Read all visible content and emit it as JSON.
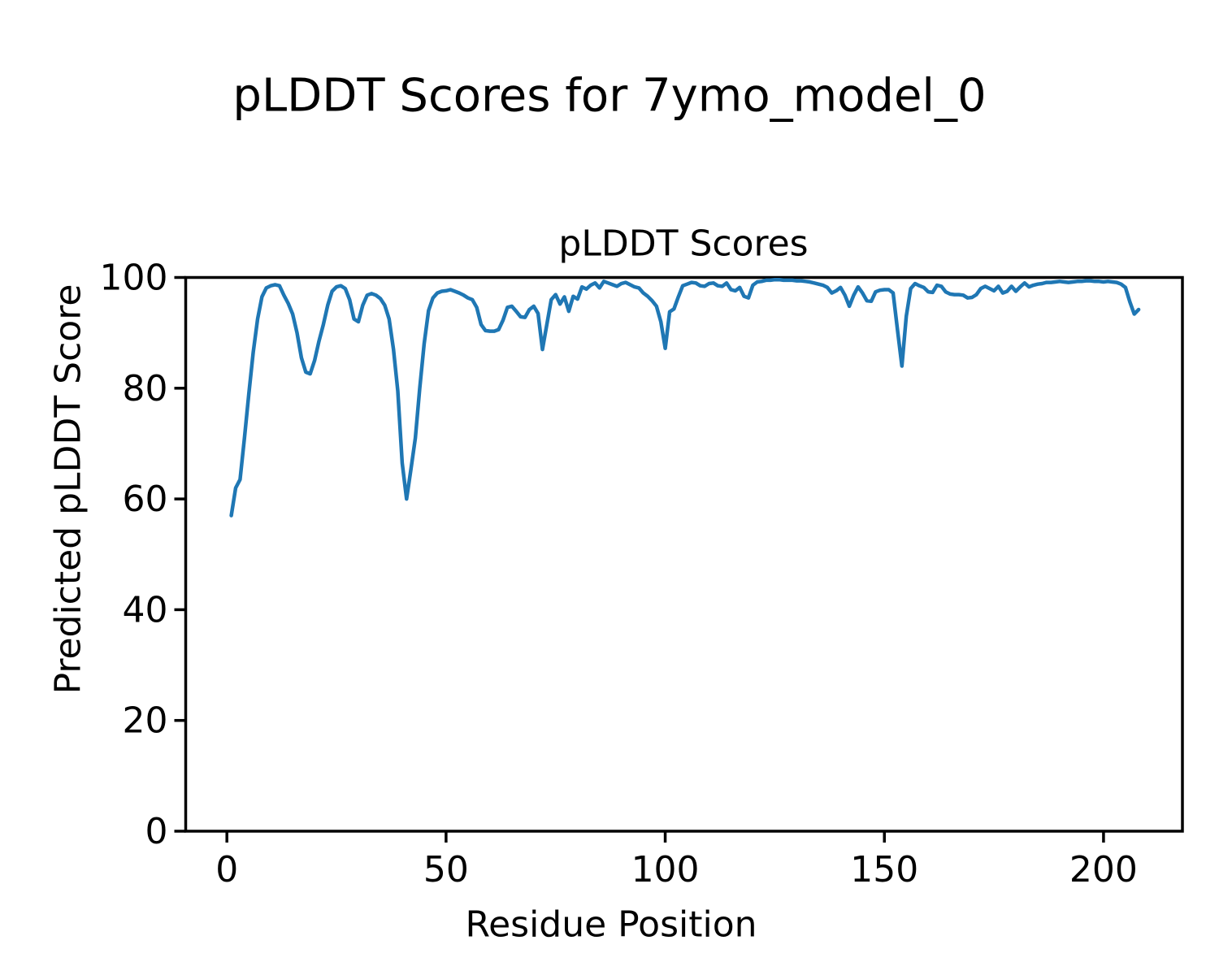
{
  "figure": {
    "suptitle": "pLDDT Scores for 7ymo_model_0",
    "axes_title": "pLDDT Scores",
    "xlabel": "Residue Position",
    "ylabel": "Predicted pLDDT Score",
    "background_color": "#ffffff",
    "text_color": "#000000"
  },
  "chart_data": {
    "type": "line",
    "title": "pLDDT Scores",
    "suptitle": "pLDDT Scores for 7ymo_model_0",
    "xlabel": "Residue Position",
    "ylabel": "Predicted pLDDT Score",
    "grid": false,
    "legend": null,
    "line_color": "#1f77b4",
    "line_width": 4.5,
    "xlim": [
      -9.4,
      218
    ],
    "ylim": [
      0,
      100
    ],
    "xticks": [
      0,
      50,
      100,
      150,
      200
    ],
    "yticks": [
      0,
      20,
      40,
      60,
      80,
      100
    ],
    "x_start": 1,
    "x_step": 1,
    "series": [
      {
        "name": "pLDDT",
        "values": [
          57,
          62,
          63.5,
          71,
          79,
          86.5,
          92.5,
          96.5,
          98.1,
          98.5,
          98.7,
          98.5,
          96.8,
          95.3,
          93.4,
          90,
          85.5,
          82.9,
          82.6,
          85,
          88.5,
          91.5,
          95,
          97.5,
          98.3,
          98.5,
          98,
          96,
          92.5,
          92,
          95,
          96.8,
          97.1,
          96.8,
          96.2,
          95,
          92.5,
          87,
          79.5,
          66.5,
          60,
          65.4,
          71,
          80,
          88,
          94,
          96.3,
          97.2,
          97.5,
          97.6,
          97.8,
          97.5,
          97.2,
          96.8,
          96.3,
          96,
          94.6,
          91.5,
          90.4,
          90.3,
          90.3,
          90.6,
          92.3,
          94.6,
          94.8,
          93.9,
          92.9,
          92.8,
          94.2,
          94.8,
          93.5,
          87,
          91.5,
          96,
          96.9,
          95.2,
          96.5,
          93.9,
          96.6,
          96.1,
          98.3,
          97.9,
          98.6,
          99,
          98.1,
          99.3,
          99,
          98.7,
          98.4,
          98.9,
          99.1,
          98.7,
          98.3,
          98.1,
          97.2,
          96.6,
          95.8,
          94.8,
          92,
          87.2,
          93.8,
          94.3,
          96.5,
          98.5,
          98.8,
          99.1,
          99,
          98.5,
          98.4,
          98.9,
          99,
          98.5,
          98.4,
          99,
          97.8,
          97.6,
          98.2,
          96.6,
          96.3,
          98.6,
          99.2,
          99.3,
          99.5,
          99.5,
          99.6,
          99.6,
          99.5,
          99.5,
          99.5,
          99.4,
          99.4,
          99.3,
          99.2,
          99,
          98.8,
          98.6,
          98.2,
          97.2,
          97.6,
          98.2,
          96.8,
          94.8,
          96.8,
          98.3,
          97.2,
          95.8,
          95.7,
          97.4,
          97.7,
          97.8,
          97.8,
          97.2,
          90.5,
          84,
          93,
          98,
          98.9,
          98.5,
          98.2,
          97.4,
          97.3,
          98.6,
          98.4,
          97.4,
          97,
          96.9,
          96.9,
          96.8,
          96.3,
          96.4,
          96.9,
          98,
          98.4,
          98,
          97.6,
          98.4,
          97.2,
          97.5,
          98.4,
          97.5,
          98.3,
          99,
          98.3,
          98.6,
          98.8,
          98.9,
          99.1,
          99.1,
          99.2,
          99.3,
          99.2,
          99.1,
          99.2,
          99.3,
          99.3,
          99.4,
          99.4,
          99.3,
          99.3,
          99.2,
          99.3,
          99.2,
          99.1,
          98.8,
          98.2,
          95.6,
          93.4,
          94.2
        ]
      }
    ]
  }
}
